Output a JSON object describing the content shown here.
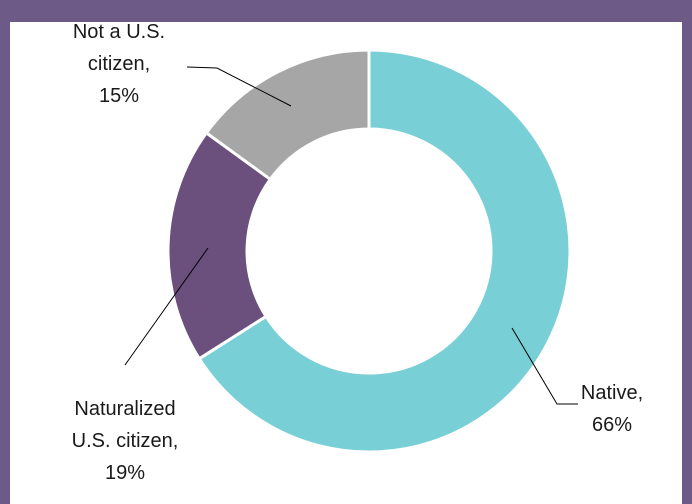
{
  "chart_data": {
    "type": "donut",
    "categories": [
      "Native,",
      "Naturalized\nU.S. citizen,",
      "Not a U.S.\ncitizen,"
    ],
    "values": [
      66,
      19,
      15
    ],
    "value_labels": [
      "66%",
      "19%",
      "15%"
    ],
    "colors": [
      "#79cfd6",
      "#6b507e",
      "#a6a6a6"
    ]
  }
}
